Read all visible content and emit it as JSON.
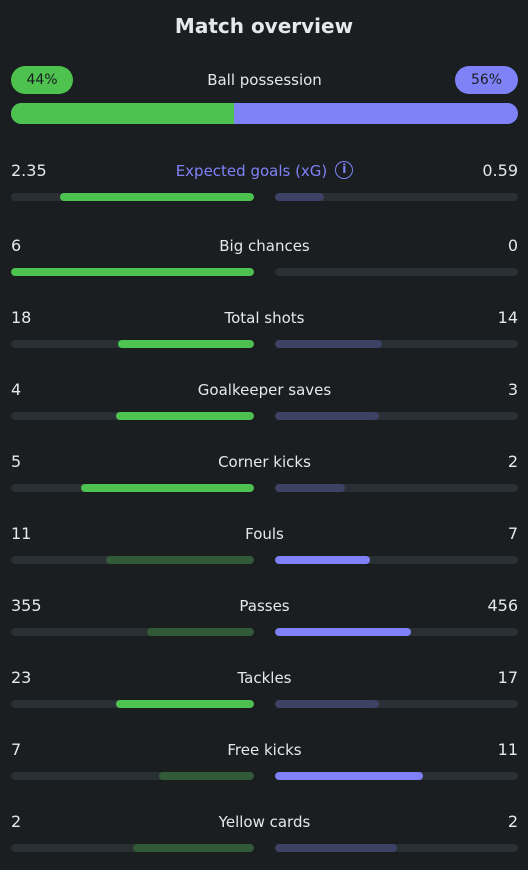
{
  "title": "Match overview",
  "colors": {
    "home": "#4dc24f",
    "away": "#7f82f7",
    "home_dim": "#325a37",
    "away_dim": "#3c4165",
    "track": "#2a2f34"
  },
  "possession": {
    "label": "Ball possession",
    "home": "44%",
    "away": "56%",
    "home_fraction": 0.44
  },
  "stats": [
    {
      "label": "Expected goals (xG)",
      "home": "2.35",
      "away": "0.59",
      "home_frac": 0.8,
      "away_frac": 0.2,
      "leader": "home",
      "info": true
    },
    {
      "label": "Big chances",
      "home": "6",
      "away": "0",
      "home_frac": 1.0,
      "away_frac": 0.0,
      "leader": "home"
    },
    {
      "label": "Total shots",
      "home": "18",
      "away": "14",
      "home_frac": 0.56,
      "away_frac": 0.44,
      "leader": "home"
    },
    {
      "label": "Goalkeeper saves",
      "home": "4",
      "away": "3",
      "home_frac": 0.57,
      "away_frac": 0.43,
      "leader": "home"
    },
    {
      "label": "Corner kicks",
      "home": "5",
      "away": "2",
      "home_frac": 0.71,
      "away_frac": 0.29,
      "leader": "home"
    },
    {
      "label": "Fouls",
      "home": "11",
      "away": "7",
      "home_frac": 0.61,
      "away_frac": 0.39,
      "leader": "away"
    },
    {
      "label": "Passes",
      "home": "355",
      "away": "456",
      "home_frac": 0.44,
      "away_frac": 0.56,
      "leader": "away"
    },
    {
      "label": "Tackles",
      "home": "23",
      "away": "17",
      "home_frac": 0.57,
      "away_frac": 0.43,
      "leader": "home"
    },
    {
      "label": "Free kicks",
      "home": "7",
      "away": "11",
      "home_frac": 0.39,
      "away_frac": 0.61,
      "leader": "away"
    },
    {
      "label": "Yellow cards",
      "home": "2",
      "away": "2",
      "home_frac": 0.5,
      "away_frac": 0.5,
      "leader": "none"
    }
  ]
}
